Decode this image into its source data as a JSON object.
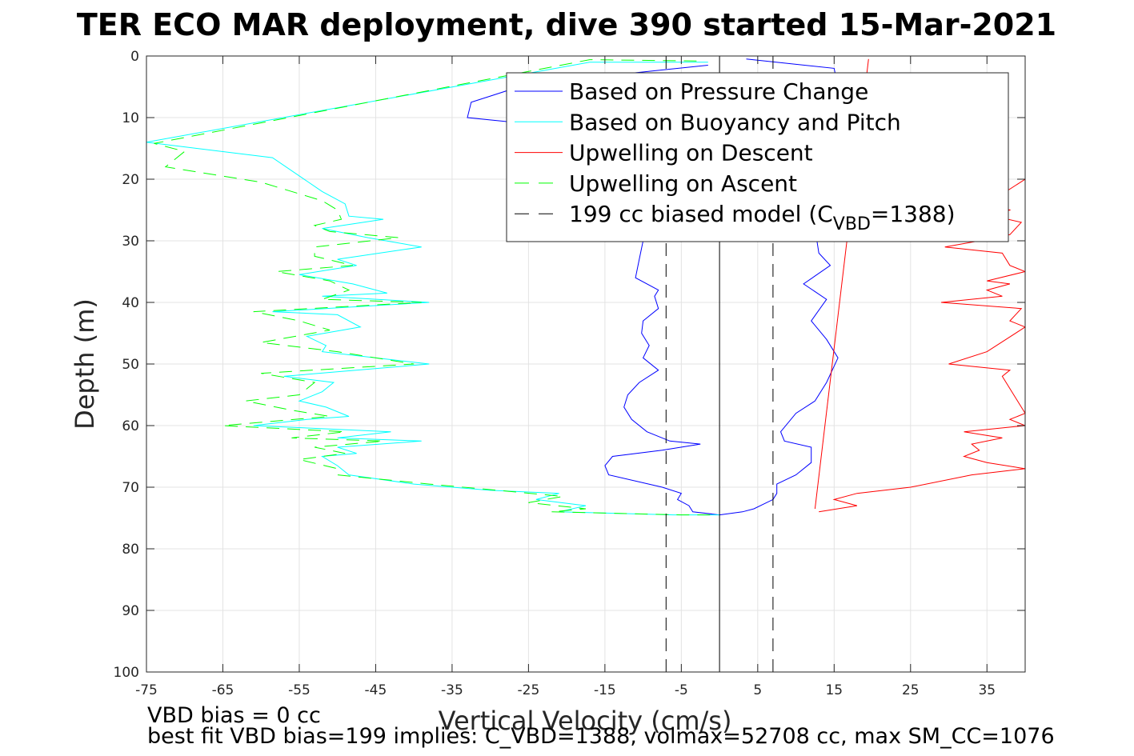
{
  "chart_data": {
    "type": "line",
    "title": "TER ECO MAR deployment, dive 390 started 15-Mar-2021",
    "xlabel": "Vertical Velocity (cm/s)",
    "ylabel": "Depth (m)",
    "xlim": [
      -75,
      40
    ],
    "ylim": [
      0,
      100
    ],
    "y_reversed": true,
    "x_ticks": [
      "-75",
      "-65",
      "-55",
      "-45",
      "-35",
      "-25",
      "-15",
      "-5",
      "5",
      "15",
      "25",
      "35"
    ],
    "x_tick_values": [
      -75,
      -65,
      -55,
      -45,
      -35,
      -25,
      -15,
      -5,
      5,
      15,
      25,
      35
    ],
    "y_ticks": [
      "0",
      "10",
      "20",
      "30",
      "40",
      "50",
      "60",
      "70",
      "80",
      "90",
      "100"
    ],
    "y_tick_values": [
      0,
      10,
      20,
      30,
      40,
      50,
      60,
      70,
      80,
      90,
      100
    ],
    "grid": true,
    "legend_position": "top-right",
    "series": [
      {
        "name": "Based on Pressure Change",
        "color": "#0000ff",
        "dash": "solid",
        "points": [
          [
            -1.5,
            1.5
          ],
          [
            -25,
            4.5
          ],
          [
            -30,
            6.5
          ],
          [
            -32.5,
            7.5
          ],
          [
            -33,
            10
          ],
          [
            -21,
            11.5
          ],
          [
            -12,
            12.5
          ],
          [
            -10.5,
            14
          ],
          [
            -10,
            20
          ],
          [
            -10.2,
            25
          ],
          [
            -10,
            30
          ],
          [
            -10.5,
            33
          ],
          [
            -11,
            36
          ],
          [
            -8,
            38
          ],
          [
            -8.5,
            39
          ],
          [
            -8,
            41
          ],
          [
            -10,
            43
          ],
          [
            -10.2,
            45
          ],
          [
            -9.2,
            47
          ],
          [
            -10,
            49
          ],
          [
            -8,
            51
          ],
          [
            -10.5,
            53
          ],
          [
            -12,
            55
          ],
          [
            -12.5,
            57
          ],
          [
            -11.5,
            59
          ],
          [
            -9.5,
            61
          ],
          [
            -6.5,
            62.5
          ],
          [
            -2.5,
            63
          ],
          [
            -7.5,
            64
          ],
          [
            -14,
            65
          ],
          [
            -15,
            66.5
          ],
          [
            -14.5,
            68
          ],
          [
            -7.5,
            70
          ],
          [
            -5,
            71
          ],
          [
            -5.5,
            72
          ],
          [
            -4,
            73
          ],
          [
            -3.5,
            74
          ],
          [
            0,
            74.5
          ]
        ]
      },
      {
        "name": "Based on Pressure Change",
        "color": "#0000ff",
        "dash": "solid",
        "points": [
          [
            3.5,
            0.5
          ],
          [
            15,
            2
          ],
          [
            15.5,
            5
          ],
          [
            14,
            10
          ],
          [
            13,
            15
          ],
          [
            13,
            20
          ],
          [
            13.5,
            25
          ],
          [
            12.5,
            28
          ],
          [
            13,
            32
          ],
          [
            14.5,
            34
          ],
          [
            11,
            37
          ],
          [
            14,
            39.5
          ],
          [
            12,
            43
          ],
          [
            14,
            46
          ],
          [
            15.5,
            49
          ],
          [
            14,
            53
          ],
          [
            12.5,
            56
          ],
          [
            10,
            58
          ],
          [
            8,
            61
          ],
          [
            8.5,
            62.5
          ],
          [
            12,
            63.5
          ],
          [
            12,
            66
          ],
          [
            10,
            68
          ],
          [
            7.5,
            69.5
          ],
          [
            7.5,
            71
          ],
          [
            7,
            72
          ],
          [
            4.5,
            73.5
          ],
          [
            3,
            74
          ],
          [
            0,
            74.5
          ]
        ]
      },
      {
        "name": "Based on Buoyancy and Pitch",
        "color": "#00ffff",
        "dash": "solid",
        "points": [
          [
            -1.5,
            1
          ],
          [
            -17,
            1
          ],
          [
            -75,
            14
          ],
          [
            -58.5,
            16.5
          ],
          [
            -52,
            22
          ],
          [
            -49,
            24
          ],
          [
            -48.5,
            26
          ],
          [
            -44,
            26.5
          ],
          [
            -52,
            28
          ],
          [
            -46,
            29.5
          ],
          [
            -39,
            31
          ],
          [
            -50,
            33
          ],
          [
            -47.5,
            34
          ],
          [
            -55,
            35.5
          ],
          [
            -48,
            37
          ],
          [
            -43.5,
            38.5
          ],
          [
            -52,
            39
          ],
          [
            -38,
            40
          ],
          [
            -58.5,
            41.5
          ],
          [
            -50,
            42
          ],
          [
            -47,
            44
          ],
          [
            -54,
            45.5
          ],
          [
            -51.5,
            47
          ],
          [
            -52,
            48
          ],
          [
            -38,
            50
          ],
          [
            -57,
            52
          ],
          [
            -50.5,
            53
          ],
          [
            -52,
            54.5
          ],
          [
            -55,
            56
          ],
          [
            -51.5,
            57
          ],
          [
            -48.5,
            58.5
          ],
          [
            -54,
            59
          ],
          [
            -61,
            60
          ],
          [
            -43,
            61
          ],
          [
            -50,
            62
          ],
          [
            -39,
            62.5
          ],
          [
            -50,
            63.5
          ],
          [
            -47.5,
            64.5
          ],
          [
            -52,
            65
          ],
          [
            -50,
            66.5
          ],
          [
            -48.5,
            68
          ],
          [
            -40,
            69.5
          ],
          [
            -30,
            70.5
          ],
          [
            -21,
            71
          ],
          [
            -24,
            72
          ],
          [
            -17.5,
            73
          ],
          [
            -21,
            74
          ],
          [
            -6,
            74.5
          ],
          [
            0,
            74.5
          ]
        ]
      },
      {
        "name": "Upwelling on Descent",
        "color": "#ff0000",
        "dash": "solid",
        "points": [
          [
            19.5,
            0.5
          ],
          [
            12.5,
            73.5
          ]
        ]
      },
      {
        "name": "Upwelling on Descent",
        "color": "#ff0000",
        "dash": "solid",
        "points": [
          [
            40,
            20
          ],
          [
            35,
            24
          ],
          [
            38,
            25
          ],
          [
            36,
            26
          ],
          [
            39.5,
            27
          ],
          [
            38,
            29
          ],
          [
            34,
            30
          ],
          [
            29.5,
            31
          ],
          [
            37,
            32
          ],
          [
            38,
            34
          ],
          [
            40,
            35
          ],
          [
            35,
            36.5
          ],
          [
            38,
            37
          ],
          [
            35,
            38
          ],
          [
            37,
            39
          ],
          [
            29,
            40
          ],
          [
            39.5,
            41
          ],
          [
            38,
            43
          ],
          [
            40,
            44
          ],
          [
            35,
            48
          ],
          [
            30,
            50
          ],
          [
            38,
            51
          ],
          [
            37,
            52
          ],
          [
            40,
            58
          ],
          [
            38,
            59
          ],
          [
            40,
            60
          ],
          [
            32,
            61
          ],
          [
            37,
            62
          ],
          [
            33,
            63
          ],
          [
            34,
            64
          ],
          [
            32,
            65
          ],
          [
            35,
            66
          ],
          [
            40,
            67
          ],
          [
            33,
            68
          ],
          [
            25,
            70
          ],
          [
            18,
            71
          ],
          [
            15,
            72
          ],
          [
            18,
            73
          ],
          [
            13,
            74
          ]
        ]
      },
      {
        "name": "Upwelling on Ascent",
        "color": "#00ff00",
        "dash": "dashed",
        "points": [
          [
            -3,
            0.8
          ],
          [
            -17,
            0.6
          ],
          [
            -74,
            14.2
          ],
          [
            -70,
            15.5
          ],
          [
            -72.5,
            18
          ],
          [
            -60,
            20.5
          ],
          [
            -52,
            23.5
          ],
          [
            -50,
            25
          ],
          [
            -49.5,
            26.5
          ],
          [
            -53,
            27.5
          ],
          [
            -51,
            28.5
          ],
          [
            -42,
            29.5
          ],
          [
            -53,
            31
          ],
          [
            -53,
            32.5
          ],
          [
            -48,
            34
          ],
          [
            -58,
            35
          ],
          [
            -51,
            36.5
          ],
          [
            -48.5,
            38
          ],
          [
            -52,
            39.5
          ],
          [
            -39,
            40
          ],
          [
            -61,
            41.5
          ],
          [
            -55,
            43
          ],
          [
            -51,
            44.5
          ],
          [
            -60,
            46.5
          ],
          [
            -50,
            48
          ],
          [
            -40,
            50
          ],
          [
            -60,
            51.5
          ],
          [
            -53,
            53
          ],
          [
            -55,
            55
          ],
          [
            -62,
            56
          ],
          [
            -56,
            57.5
          ],
          [
            -51,
            58.5
          ],
          [
            -65,
            60
          ],
          [
            -49,
            61
          ],
          [
            -56,
            62
          ],
          [
            -44,
            62.5
          ],
          [
            -53,
            63.5
          ],
          [
            -49,
            64.5
          ],
          [
            -55,
            65.5
          ],
          [
            -50,
            67
          ],
          [
            -50,
            68
          ],
          [
            -38,
            69.5
          ],
          [
            -29,
            70.5
          ],
          [
            -20.5,
            71.5
          ],
          [
            -25,
            72.5
          ],
          [
            -17.5,
            73.5
          ],
          [
            -22,
            74
          ],
          [
            -5,
            74.5
          ],
          [
            -1,
            74.5
          ]
        ]
      },
      {
        "name": "199 cc biased model (CVBD=1388)",
        "color": "#000000",
        "dash": "dashed",
        "points": [
          [
            -7,
            0
          ],
          [
            -7,
            100
          ]
        ]
      },
      {
        "name": "199 cc biased model (CVBD=1388)",
        "color": "#000000",
        "dash": "dashed",
        "points": [
          [
            7,
            0
          ],
          [
            7,
            100
          ]
        ]
      },
      {
        "name": "199 cc biased model (CVBD=1388)",
        "color": "#000000",
        "dash": "solid",
        "points": [
          [
            0,
            0
          ],
          [
            0,
            100
          ]
        ]
      }
    ],
    "legend": [
      {
        "label": "Based on Pressure Change",
        "color": "#0000ff",
        "dash": "solid"
      },
      {
        "label": "Based on Buoyancy and Pitch",
        "color": "#00ffff",
        "dash": "solid"
      },
      {
        "label": "Upwelling on Descent",
        "color": "#ff0000",
        "dash": "solid"
      },
      {
        "label": "Upwelling on Ascent",
        "color": "#00ff00",
        "dash": "dashed"
      },
      {
        "label_pre": "199 cc biased model (C",
        "label_sub": "VBD",
        "label_post": "=1388)",
        "color": "#000000",
        "dash": "dashed"
      }
    ],
    "annotations": {
      "line1": "VBD bias = 0 cc",
      "line2": "best fit VBD bias=199 implies: C_VBD=1388, volmax=52708 cc, max SM_CC=1076"
    }
  }
}
